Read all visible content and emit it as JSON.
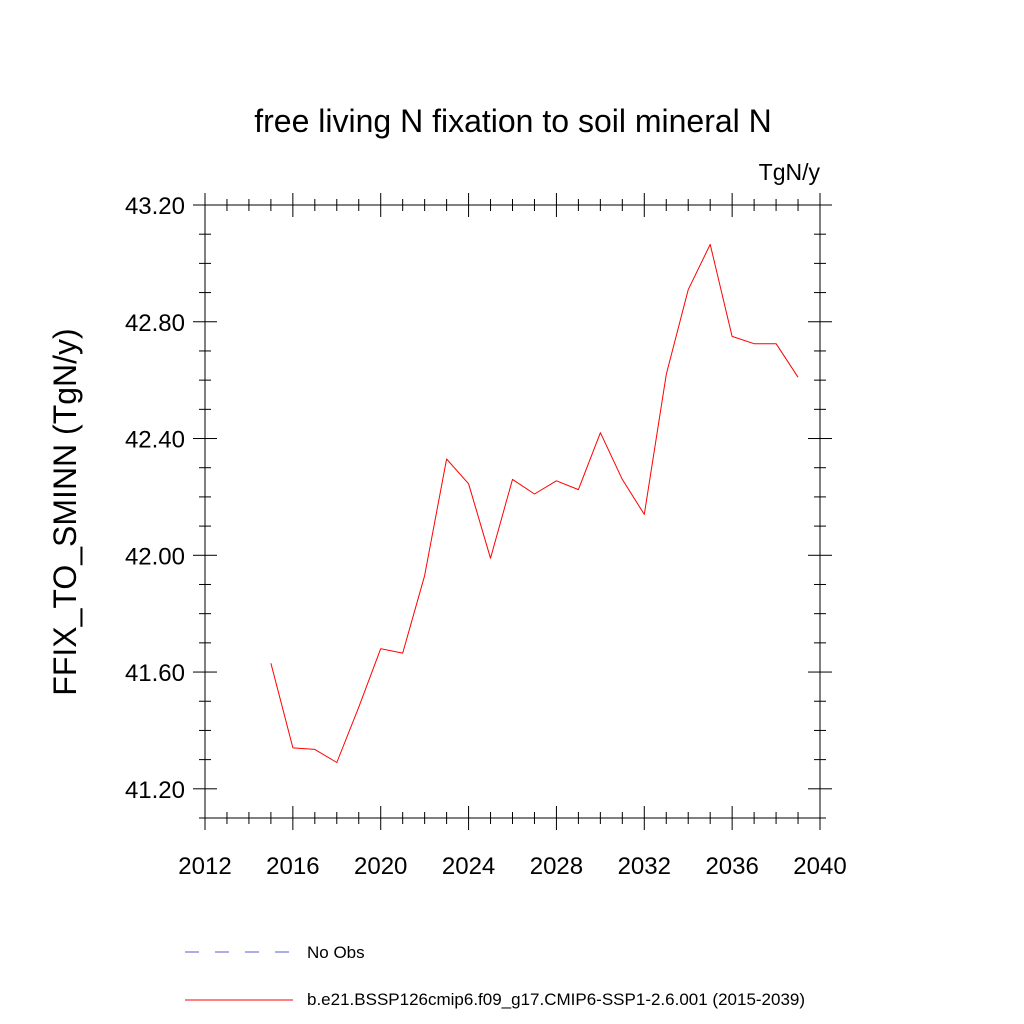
{
  "chart_data": {
    "type": "line",
    "title": "free living N fixation to soil mineral N",
    "units": "TgN/y",
    "ylabel": "FFIX_TO_SMINN  (TgN/y)",
    "xlabel": "",
    "xlim": [
      2012,
      2040
    ],
    "ylim": [
      41.1,
      43.2
    ],
    "x_ticks": [
      "2012",
      "2016",
      "2020",
      "2024",
      "2028",
      "2032",
      "2036",
      "2040"
    ],
    "y_ticks": [
      "41.20",
      "41.60",
      "42.00",
      "42.40",
      "42.80",
      "43.20"
    ],
    "grid": false,
    "legend_placement": "bottom",
    "series": [
      {
        "name": "b.e21.BSSP126cmip6.f09_g17.CMIP6-SSP1-2.6.001 (2015-2039)",
        "color": "#ff0000",
        "line_style": "solid",
        "x": [
          2015,
          2016,
          2017,
          2018,
          2019,
          2020,
          2021,
          2022,
          2023,
          2024,
          2025,
          2026,
          2027,
          2028,
          2029,
          2030,
          2031,
          2032,
          2033,
          2034,
          2035,
          2036,
          2037,
          2038,
          2039
        ],
        "y": [
          41.63,
          41.34,
          41.335,
          41.29,
          41.48,
          41.68,
          41.665,
          41.93,
          42.33,
          42.245,
          41.99,
          42.26,
          42.21,
          42.255,
          42.225,
          42.42,
          42.26,
          42.14,
          42.62,
          42.91,
          43.065,
          42.75,
          42.725,
          42.725,
          42.61
        ]
      }
    ],
    "legend": [
      {
        "label": "No Obs",
        "color": "#5a5ad2",
        "line_style": "dashed"
      },
      {
        "label": "b.e21.BSSP126cmip6.f09_g17.CMIP6-SSP1-2.6.001 (2015-2039)",
        "color": "#ff0000",
        "line_style": "solid"
      }
    ]
  }
}
